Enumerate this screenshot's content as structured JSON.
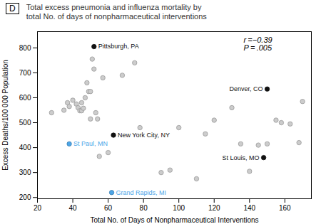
{
  "chart_data": {
    "type": "scatter",
    "title": "Total excess pneumonia and influenza mortality by",
    "subtitle": "total No. of days of nonpharmaceutical interventions",
    "panel_label": "D",
    "xlabel": "Total No. of Days of Nonpharmaceutical Interventions",
    "ylabel": "Excess Deaths/100 000 Population",
    "xlim": [
      20,
      175
    ],
    "ylim": [
      195,
      865
    ],
    "xticks": [
      20,
      40,
      60,
      80,
      100,
      120,
      140,
      160
    ],
    "yticks": [
      200,
      300,
      400,
      500,
      600,
      700,
      800
    ],
    "grid": false,
    "annotations": [
      "r =−0.39",
      "P = .005"
    ],
    "series": [
      {
        "color": "#cccccc",
        "marker": "circle",
        "x": [
          28,
          35,
          37,
          38,
          40,
          42,
          43,
          44,
          45,
          45,
          46,
          47,
          48,
          49,
          50,
          50,
          51,
          52,
          53,
          54,
          55,
          57,
          60,
          68,
          75,
          78,
          90,
          95,
          100,
          110,
          115,
          120,
          130,
          135,
          140,
          145,
          150,
          155,
          158,
          163,
          168,
          170
        ],
        "values": [
          540,
          550,
          580,
          565,
          590,
          575,
          560,
          548,
          548,
          580,
          558,
          600,
          660,
          625,
          625,
          515,
          755,
          715,
          540,
          515,
          365,
          680,
          380,
          690,
          740,
          480,
          300,
          310,
          480,
          275,
          455,
          510,
          560,
          415,
          305,
          410,
          415,
          510,
          500,
          495,
          420,
          585
        ]
      },
      {
        "color": "#111111",
        "marker": "circle",
        "x": [
          52,
          63,
          148,
          150
        ],
        "values": [
          805,
          450,
          360,
          635
        ],
        "labels": [
          "Pittsburgh, PA",
          "New York City, NY",
          "St Louis, MO",
          "Denver, CO"
        ]
      },
      {
        "color": "#4da6e8",
        "marker": "circle",
        "x": [
          38,
          62
        ],
        "values": [
          415,
          220
        ],
        "labels": [
          "St Paul, MN",
          "Grand Rapids, MI"
        ]
      }
    ]
  }
}
